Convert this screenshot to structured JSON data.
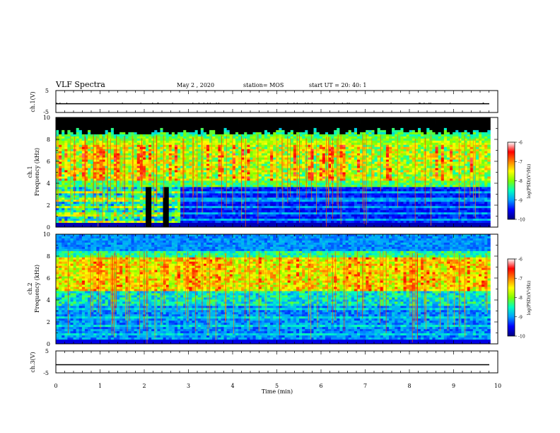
{
  "header": {
    "title": "VLF Spectra",
    "date": "May 2 , 2020",
    "station": "station= MOS",
    "start_ut": "start UT = 20: 40: 1"
  },
  "chart_data": [
    {
      "type": "line",
      "name": "ch1-voltage",
      "ylabel": "ch.1(V)",
      "ylim": [
        -5,
        5
      ],
      "yticks": [
        "5",
        "-5"
      ],
      "trace_level": -1,
      "xlim": [
        0,
        10
      ]
    },
    {
      "type": "heatmap",
      "name": "ch1-spectrogram",
      "ylabel_lines": [
        "ch.1",
        "Frequency (kHz)"
      ],
      "ylim": [
        0,
        10
      ],
      "yticks": [
        "0",
        "2",
        "4",
        "6",
        "8",
        "10"
      ],
      "xlim": [
        0,
        10
      ],
      "data_end_min": 9.83,
      "colorbar": {
        "label": "log(PSD)(V²/Hz)",
        "ticks": [
          "-6",
          "-7",
          "-8",
          "-9",
          "-10"
        ],
        "range": [
          -10,
          -6
        ],
        "colors": [
          "#000080",
          "#0000ff",
          "#00a0ff",
          "#00ffc0",
          "#80ff00",
          "#ffff00",
          "#ff8000",
          "#ff0000",
          "#ffffff"
        ]
      }
    },
    {
      "type": "heatmap",
      "name": "ch2-spectrogram",
      "ylabel_lines": [
        "ch.2",
        "Frequency (kHz)"
      ],
      "ylim": [
        0,
        10
      ],
      "yticks": [
        "0",
        "2",
        "4",
        "6",
        "8",
        "10"
      ],
      "xlim": [
        0,
        10
      ],
      "data_end_min": 9.83,
      "colorbar": {
        "label": "log(PSD)(V²/Hz)",
        "ticks": [
          "-6",
          "-7",
          "-8",
          "-9",
          "-10"
        ],
        "range": [
          -10,
          -6
        ],
        "colors": [
          "#000080",
          "#0000ff",
          "#00a0ff",
          "#00ffc0",
          "#80ff00",
          "#ffff00",
          "#ff8000",
          "#ff0000",
          "#ffffff"
        ]
      }
    },
    {
      "type": "line",
      "name": "ch3-voltage",
      "ylabel": "ch.3(V)",
      "ylim": [
        -5,
        5
      ],
      "yticks": [
        "5",
        "-5"
      ],
      "trace_level": -1.3,
      "xlim": [
        0,
        10
      ],
      "xlabel": "Time (min)",
      "xticks": [
        "0",
        "1",
        "2",
        "3",
        "4",
        "5",
        "6",
        "7",
        "8",
        "9",
        "10"
      ]
    }
  ]
}
